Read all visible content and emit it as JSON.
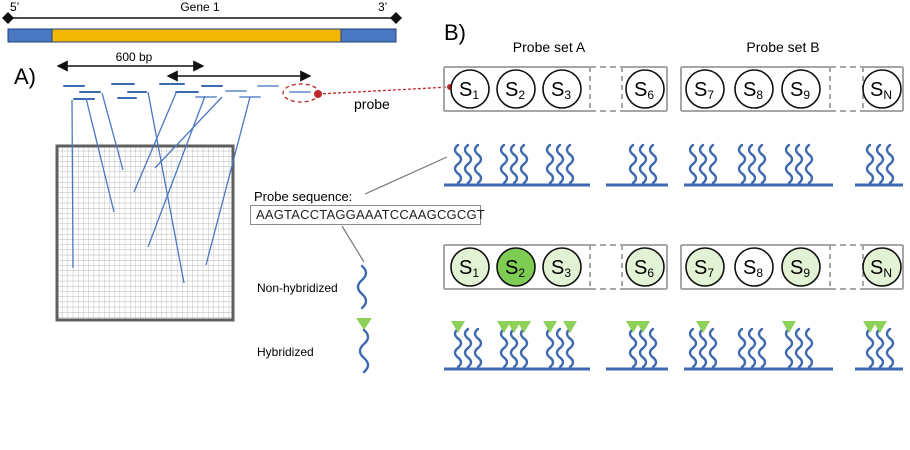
{
  "gene": {
    "label": "Gene 1",
    "five_prime": "5’",
    "three_prime": "3’"
  },
  "panel_a": {
    "label": "A)",
    "span_label": "600 bp",
    "probe_label": "probe"
  },
  "panel_b": {
    "label": "B)",
    "set_a_title": "Probe set A",
    "set_b_title": "Probe set B",
    "spots": [
      {
        "base": "S",
        "sub": "1"
      },
      {
        "base": "S",
        "sub": "2"
      },
      {
        "base": "S",
        "sub": "3"
      },
      {
        "base": "S",
        "sub": "6"
      },
      {
        "base": "S",
        "sub": "7"
      },
      {
        "base": "S",
        "sub": "8"
      },
      {
        "base": "S",
        "sub": "9"
      },
      {
        "base": "S",
        "sub": "N"
      }
    ],
    "hybridization_state": [
      "light",
      "strong",
      "light",
      "light",
      "light",
      "none",
      "light",
      "light"
    ]
  },
  "legend": {
    "probe_sequence_label": "Probe sequence:",
    "probe_sequence": "AAGTACCTAGGAAATCCAAGCGCGT",
    "non_hybridized": "Non-hybridized",
    "hybridized": "Hybridized"
  },
  "colors": {
    "gene_body": "#f2b705",
    "gene_flank": "#4a78c2",
    "probe_line": "#3d69b1",
    "probe_faint": "#86a6d8",
    "box_border": "#a6a6a6",
    "dot_red": "#c0282b",
    "green_light": "#e2f2d4",
    "green_strong": "#7fcc55",
    "triangle": "#8dd158"
  }
}
